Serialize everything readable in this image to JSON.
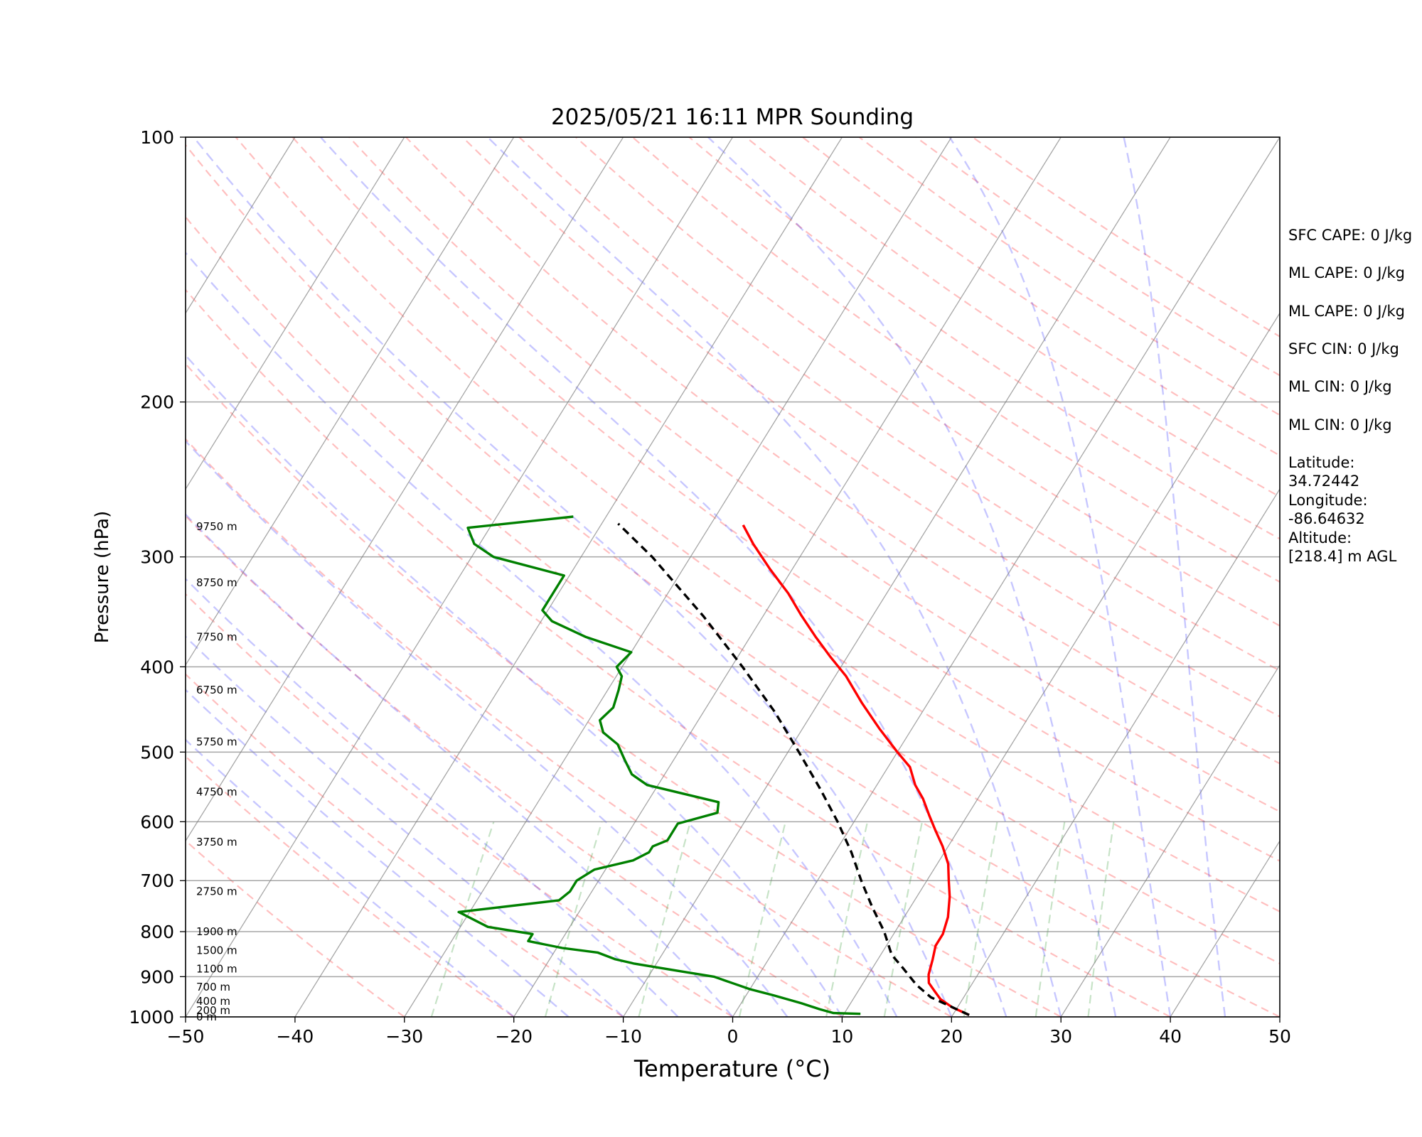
{
  "chart_data": {
    "type": "line",
    "diagram": "Skew-T log-P",
    "title": "2025/05/21 16:11 MPR Sounding",
    "xlabel": "Temperature (°C)",
    "ylabel": "Pressure (hPa)",
    "xlim": [
      -50,
      50
    ],
    "ylim": [
      1000,
      100
    ],
    "y_scale": "log",
    "x_ticks": [
      -50,
      -40,
      -30,
      -20,
      -10,
      0,
      10,
      20,
      30,
      40,
      50
    ],
    "x_tick_labels": [
      "−50",
      "−40",
      "−30",
      "−20",
      "−10",
      "0",
      "10",
      "20",
      "30",
      "40",
      "50"
    ],
    "y_ticks": [
      100,
      200,
      300,
      400,
      500,
      600,
      700,
      800,
      900,
      1000
    ],
    "y_tick_labels": [
      "100",
      "200",
      "300",
      "400",
      "500",
      "600",
      "700",
      "800",
      "900",
      "1000"
    ],
    "grid": true,
    "series": [
      {
        "kind": "temperature",
        "color": "#ff0000",
        "points": [
          [
            21.5,
            995
          ],
          [
            19.5,
            975
          ],
          [
            18.0,
            955
          ],
          [
            17.0,
            935
          ],
          [
            16.0,
            915
          ],
          [
            15.5,
            895
          ],
          [
            15.0,
            860
          ],
          [
            14.5,
            830
          ],
          [
            14.5,
            805
          ],
          [
            14.0,
            770
          ],
          [
            13.0,
            730
          ],
          [
            12.0,
            700
          ],
          [
            11.0,
            670
          ],
          [
            9.5,
            640
          ],
          [
            8.0,
            615
          ],
          [
            6.5,
            590
          ],
          [
            5.0,
            565
          ],
          [
            3.5,
            545
          ],
          [
            2.0,
            520
          ],
          [
            0.0,
            500
          ],
          [
            -3.0,
            470
          ],
          [
            -6.0,
            440
          ],
          [
            -9.0,
            410
          ],
          [
            -11.5,
            390
          ],
          [
            -14.0,
            370
          ],
          [
            -16.5,
            350
          ],
          [
            -19.0,
            330
          ],
          [
            -22.0,
            310
          ],
          [
            -25.0,
            290
          ],
          [
            -27.0,
            276
          ]
        ]
      },
      {
        "kind": "dewpoint",
        "color": "#008000",
        "points": [
          [
            11.5,
            992
          ],
          [
            9.0,
            990
          ],
          [
            7.5,
            980
          ],
          [
            5.5,
            965
          ],
          [
            2.5,
            945
          ],
          [
            0.0,
            930
          ],
          [
            -2.0,
            915
          ],
          [
            -4.0,
            900
          ],
          [
            -8.0,
            885
          ],
          [
            -12.0,
            870
          ],
          [
            -14.0,
            860
          ],
          [
            -16.0,
            845
          ],
          [
            -19.5,
            835
          ],
          [
            -23.0,
            820
          ],
          [
            -23.0,
            805
          ],
          [
            -27.5,
            790
          ],
          [
            -31.0,
            760
          ],
          [
            -22.5,
            737
          ],
          [
            -22.0,
            720
          ],
          [
            -22.0,
            700
          ],
          [
            -21.0,
            680
          ],
          [
            -18.0,
            664
          ],
          [
            -17.0,
            650
          ],
          [
            -17.0,
            640
          ],
          [
            -16.0,
            630
          ],
          [
            -16.0,
            615
          ],
          [
            -16.0,
            603
          ],
          [
            -13.0,
            586
          ],
          [
            -13.5,
            570
          ],
          [
            -21.0,
            545
          ],
          [
            -23.0,
            530
          ],
          [
            -24.5,
            510
          ],
          [
            -26.0,
            490
          ],
          [
            -28.0,
            475
          ],
          [
            -29.0,
            460
          ],
          [
            -28.5,
            445
          ],
          [
            -29.0,
            425
          ],
          [
            -29.5,
            410
          ],
          [
            -30.5,
            400
          ],
          [
            -30.0,
            385
          ],
          [
            -35.0,
            370
          ],
          [
            -39.0,
            355
          ],
          [
            -40.5,
            345
          ],
          [
            -40.5,
            335
          ],
          [
            -40.5,
            320
          ],
          [
            -40.5,
            315
          ],
          [
            -48.0,
            300
          ],
          [
            -50.5,
            290
          ],
          [
            -52.0,
            278
          ],
          [
            -43.0,
            270
          ]
        ]
      },
      {
        "kind": "parcel profile",
        "color": "#000000",
        "style": "dashed",
        "points": [
          [
            21.5,
            995
          ],
          [
            17.0,
            950
          ],
          [
            15.0,
            920
          ],
          [
            12.5,
            875
          ],
          [
            11.0,
            850
          ],
          [
            9.0,
            800
          ],
          [
            6.5,
            750
          ],
          [
            4.0,
            700
          ],
          [
            1.5,
            650
          ],
          [
            -1.5,
            600
          ],
          [
            -5.0,
            550
          ],
          [
            -9.0,
            500
          ],
          [
            -13.5,
            450
          ],
          [
            -19.0,
            400
          ],
          [
            -25.5,
            350
          ],
          [
            -33.5,
            300
          ],
          [
            -38.5,
            275
          ]
        ]
      }
    ],
    "height_labels": [
      {
        "text": "0 m",
        "p": 1000
      },
      {
        "text": "200 m",
        "p": 983
      },
      {
        "text": "400 m",
        "p": 960
      },
      {
        "text": "700 m",
        "p": 925
      },
      {
        "text": "1100 m",
        "p": 882
      },
      {
        "text": "1500 m",
        "p": 840
      },
      {
        "text": "1900 m",
        "p": 800
      },
      {
        "text": "2750 m",
        "p": 720
      },
      {
        "text": "3750 m",
        "p": 633
      },
      {
        "text": "4750 m",
        "p": 555
      },
      {
        "text": "5750 m",
        "p": 487
      },
      {
        "text": "6750 m",
        "p": 425
      },
      {
        "text": "7750 m",
        "p": 370
      },
      {
        "text": "8750 m",
        "p": 321
      },
      {
        "text": "9750 m",
        "p": 277
      }
    ],
    "background_lines": {
      "isotherm_color": "#808080",
      "dry_adiabat_color": "#ff0000",
      "moist_adiabat_color": "#0000ff",
      "mixing_ratio_color": "#008000"
    }
  },
  "stats": [
    "SFC CAPE: 0 J/kg",
    "ML CAPE: 0 J/kg",
    "ML CAPE: 0 J/kg",
    "SFC CIN: 0 J/kg",
    "ML CIN: 0 J/kg",
    "ML CIN: 0 J/kg",
    "Latitude:\n34.72442",
    "Longitude:\n-86.64632",
    "Altitude:\n[218.4] m AGL"
  ]
}
